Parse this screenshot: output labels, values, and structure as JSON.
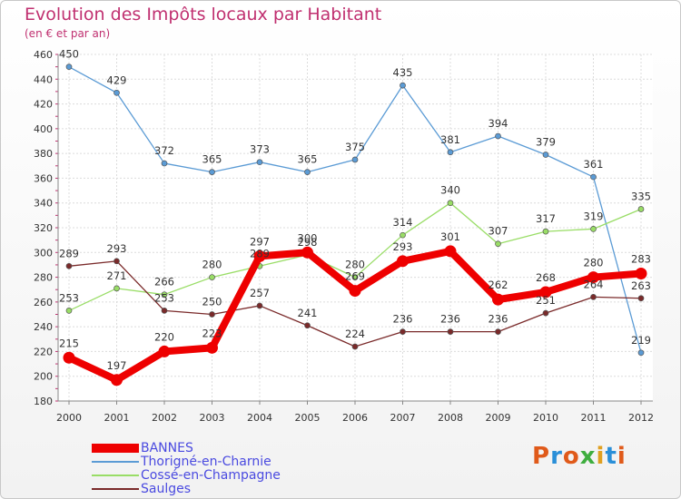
{
  "title": "Evolution des Impôts locaux par Habitant",
  "subtitle": "(en € et par an)",
  "logo_text": "Proxiti",
  "chart_data": {
    "type": "line",
    "title": "Evolution des Impôts locaux par Habitant",
    "subtitle": "(en € et par an)",
    "xlabel": "",
    "ylabel": "",
    "grid": true,
    "ylim": [
      180,
      460
    ],
    "yticks": [
      180,
      200,
      220,
      240,
      260,
      280,
      300,
      320,
      340,
      360,
      380,
      400,
      420,
      440,
      460
    ],
    "x": [
      "2000",
      "2001",
      "2002",
      "2003",
      "2004",
      "2005",
      "2006",
      "2007",
      "2008",
      "2009",
      "2010",
      "2011",
      "2012"
    ],
    "legend_position": "bottom",
    "series": [
      {
        "name": "BANNES",
        "color": "#ee0000",
        "emphasis": true,
        "values": [
          215,
          197,
          220,
          223,
          297,
          300,
          269,
          293,
          301,
          262,
          268,
          280,
          283
        ]
      },
      {
        "name": "Thorigné-en-Charnie",
        "color": "#5b9bd5",
        "emphasis": false,
        "values": [
          450,
          429,
          372,
          365,
          373,
          365,
          375,
          435,
          381,
          394,
          379,
          361,
          219
        ]
      },
      {
        "name": "Cossé-en-Champagne",
        "color": "#99dd66",
        "emphasis": false,
        "values": [
          253,
          271,
          266,
          280,
          289,
          298,
          280,
          314,
          340,
          307,
          317,
          319,
          335
        ]
      },
      {
        "name": "Saulges",
        "color": "#7a2a2a",
        "emphasis": false,
        "values": [
          289,
          293,
          253,
          250,
          257,
          241,
          224,
          236,
          236,
          236,
          251,
          264,
          263
        ]
      }
    ]
  }
}
